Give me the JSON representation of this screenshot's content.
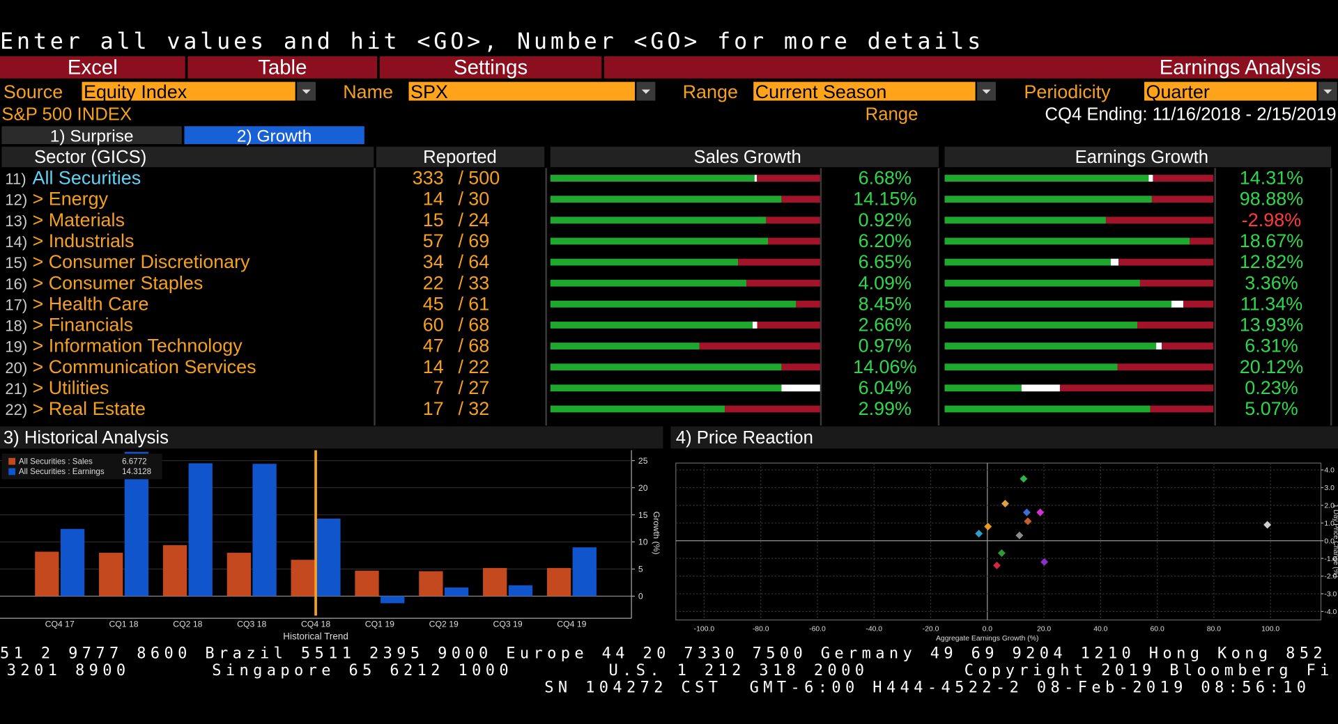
{
  "header": {
    "prompt": "Enter all values and hit <GO>, Number <GO> for more details",
    "menu": [
      "Excel",
      "Table",
      "Settings"
    ],
    "function_title": "Earnings Analysis"
  },
  "fields": [
    {
      "label": "Source",
      "value": "Equity Index"
    },
    {
      "label": "Name",
      "value": "SPX"
    },
    {
      "label": "Range",
      "value": "Current Season"
    },
    {
      "label": "Periodicity",
      "value": "Quarter"
    }
  ],
  "index_name": "S&P 500 INDEX",
  "range": {
    "label": "Range",
    "value": "CQ4 Ending: 11/16/2018 - 2/15/2019"
  },
  "tabs": [
    "1) Surprise",
    "2) Growth"
  ],
  "table": {
    "headers": [
      "Sector (GICS)",
      "Reported",
      "Sales Growth",
      "Earnings Growth"
    ],
    "separator": "/",
    "rows": [
      {
        "number": "11)",
        "name": "All Securities",
        "reported": 333,
        "total": 500,
        "sales": {
          "value": 6.68,
          "label": "6.68%",
          "beat": 75.7,
          "inline": 0.9,
          "miss": 23.4
        },
        "earnings": {
          "value": 14.31,
          "label": "14.31%",
          "beat": 75.9,
          "inline": 1.6,
          "miss": 22.5
        }
      },
      {
        "number": "12)",
        "name": "> Energy",
        "reported": 14,
        "total": 30,
        "sales": {
          "value": 14.15,
          "label": "14.15%",
          "beat": 85.7,
          "inline": 0,
          "miss": 14.3
        },
        "earnings": {
          "value": 98.88,
          "label": "98.88%",
          "beat": 77.1,
          "inline": 0,
          "miss": 22.9
        }
      },
      {
        "number": "13)",
        "name": "> Materials",
        "reported": 15,
        "total": 24,
        "sales": {
          "value": 0.92,
          "label": "0.92%",
          "beat": 80.0,
          "inline": 0,
          "miss": 20.0
        },
        "earnings": {
          "value": -2.98,
          "label": "-2.98%",
          "beat": 60.0,
          "inline": 0,
          "miss": 40.0
        }
      },
      {
        "number": "14)",
        "name": "> Industrials",
        "reported": 57,
        "total": 69,
        "sales": {
          "value": 6.2,
          "label": "6.20%",
          "beat": 80.7,
          "inline": 0,
          "miss": 19.3
        },
        "earnings": {
          "value": 18.67,
          "label": "18.67%",
          "beat": 91.2,
          "inline": 0,
          "miss": 8.8
        }
      },
      {
        "number": "15)",
        "name": "> Consumer Discretionary",
        "reported": 34,
        "total": 64,
        "sales": {
          "value": 6.65,
          "label": "6.65%",
          "beat": 69.6,
          "inline": 0,
          "miss": 30.4
        },
        "earnings": {
          "value": 12.82,
          "label": "12.82%",
          "beat": 61.8,
          "inline": 2.9,
          "miss": 35.3
        }
      },
      {
        "number": "16)",
        "name": "> Consumer Staples",
        "reported": 22,
        "total": 33,
        "sales": {
          "value": 4.09,
          "label": "4.09%",
          "beat": 72.7,
          "inline": 0,
          "miss": 27.3
        },
        "earnings": {
          "value": 3.36,
          "label": "3.36%",
          "beat": 72.7,
          "inline": 0,
          "miss": 27.3
        }
      },
      {
        "number": "17)",
        "name": "> Health Care",
        "reported": 45,
        "total": 61,
        "sales": {
          "value": 8.45,
          "label": "8.45%",
          "beat": 91.1,
          "inline": 0,
          "miss": 8.9
        },
        "earnings": {
          "value": 11.34,
          "label": "11.34%",
          "beat": 84.4,
          "inline": 4.4,
          "miss": 11.2
        }
      },
      {
        "number": "18)",
        "name": "> Financials",
        "reported": 60,
        "total": 68,
        "sales": {
          "value": 2.66,
          "label": "2.66%",
          "beat": 75.0,
          "inline": 1.7,
          "miss": 23.3
        },
        "earnings": {
          "value": 13.93,
          "label": "13.93%",
          "beat": 71.7,
          "inline": 0,
          "miss": 28.3
        }
      },
      {
        "number": "19)",
        "name": "> Information Technology",
        "reported": 47,
        "total": 68,
        "sales": {
          "value": 0.97,
          "label": "0.97%",
          "beat": 55.3,
          "inline": 0,
          "miss": 44.7
        },
        "earnings": {
          "value": 6.31,
          "label": "6.31%",
          "beat": 78.7,
          "inline": 2.1,
          "miss": 19.2
        }
      },
      {
        "number": "20)",
        "name": "> Communication Services",
        "reported": 14,
        "total": 22,
        "sales": {
          "value": 14.06,
          "label": "14.06%",
          "beat": 85.7,
          "inline": 0,
          "miss": 14.3
        },
        "earnings": {
          "value": 20.12,
          "label": "20.12%",
          "beat": 64.3,
          "inline": 0,
          "miss": 35.7
        }
      },
      {
        "number": "21)",
        "name": "> Utilities",
        "reported": 7,
        "total": 27,
        "sales": {
          "value": 6.04,
          "label": "6.04%",
          "beat": 85.7,
          "inline": 14.3,
          "miss": 0
        },
        "earnings": {
          "value": 0.23,
          "label": "0.23%",
          "beat": 28.6,
          "inline": 14.3,
          "miss": 57.1
        }
      },
      {
        "number": "22)",
        "name": "> Real Estate",
        "reported": 17,
        "total": 32,
        "sales": {
          "value": 2.99,
          "label": "2.99%",
          "beat": 64.7,
          "inline": 0,
          "miss": 35.3
        },
        "earnings": {
          "value": 5.07,
          "label": "5.07%",
          "beat": 76.5,
          "inline": 0,
          "miss": 23.5
        }
      }
    ]
  },
  "historical": {
    "title": "3) Historical Analysis",
    "type": "bar",
    "categories": [
      "CQ4 17",
      "CQ1 18",
      "CQ2 18",
      "CQ3 18",
      "CQ4 18",
      "CQ1 19",
      "CQ2 19",
      "CQ3 19",
      "CQ4 19"
    ],
    "series": [
      {
        "name": "All Securities : Sales",
        "latest": 6.6772,
        "color": "#c4491e",
        "values": [
          8.2,
          8.0,
          9.4,
          8.0,
          6.7,
          4.7,
          4.6,
          5.2,
          5.2
        ]
      },
      {
        "name": "All Securities : Earnings",
        "latest": 14.3128,
        "color": "#1155cc",
        "values": [
          12.4,
          26.6,
          24.5,
          24.4,
          14.3,
          -1.3,
          1.6,
          2.0,
          9.0
        ]
      }
    ],
    "ylim": [
      -3.6,
      26.9
    ],
    "yticks": [
      0,
      5,
      10,
      15,
      20,
      25
    ],
    "ylabel": "Growth (%)",
    "xlabel": "Historical Trend"
  },
  "price_reaction": {
    "title": "4) Price Reaction",
    "type": "scatter",
    "points": [
      {
        "x": 14.31,
        "y": 1.1,
        "color": "#c8602a"
      },
      {
        "x": 98.88,
        "y": 0.9,
        "color": "#cfcfcf"
      },
      {
        "x": -2.98,
        "y": 0.4,
        "color": "#2aa3c8"
      },
      {
        "x": 18.67,
        "y": 1.6,
        "color": "#d62fd0"
      },
      {
        "x": 12.82,
        "y": 3.5,
        "color": "#2fb34a"
      },
      {
        "x": 3.36,
        "y": -1.4,
        "color": "#d0283c"
      },
      {
        "x": 11.34,
        "y": 0.3,
        "color": "#8c8c8c"
      },
      {
        "x": 13.93,
        "y": 1.6,
        "color": "#3a6fd8"
      },
      {
        "x": 6.31,
        "y": 2.1,
        "color": "#e0a040"
      },
      {
        "x": 20.12,
        "y": -1.2,
        "color": "#8a2fc8"
      },
      {
        "x": 0.23,
        "y": 0.8,
        "color": "#e89a20"
      },
      {
        "x": 5.07,
        "y": -0.7,
        "color": "#2f9a3a"
      }
    ],
    "xlim": [
      -110,
      117.8
    ],
    "ylim": [
      -4.48,
      4.39
    ],
    "xticks": [
      {
        "value": -100,
        "label": "-100.0"
      },
      {
        "value": -80,
        "label": "-80.0"
      },
      {
        "value": -60,
        "label": "-60.0"
      },
      {
        "value": -40,
        "label": "-40.0"
      },
      {
        "value": -20,
        "label": "-20.0"
      },
      {
        "value": 0,
        "label": "0.0"
      },
      {
        "value": 20,
        "label": "20.0"
      },
      {
        "value": 40,
        "label": "40.0"
      },
      {
        "value": 60,
        "label": "60.0"
      },
      {
        "value": 80,
        "label": "80.0"
      },
      {
        "value": 100,
        "label": "100.0"
      }
    ],
    "yticks": [
      {
        "value": 4,
        "label": "4.0"
      },
      {
        "value": 3,
        "label": "3.0"
      },
      {
        "value": 2,
        "label": "2.0"
      },
      {
        "value": 1,
        "label": "1.0"
      },
      {
        "value": 0,
        "label": "0.0"
      },
      {
        "value": -1,
        "label": "-1.0"
      },
      {
        "value": -2,
        "label": "-2.0"
      },
      {
        "value": -3,
        "label": "-3.0"
      },
      {
        "value": -4,
        "label": "-4.0"
      }
    ],
    "xlabel": "Aggregate Earnings Growth (%)",
    "ylabel": "1 Day Price Change (%)"
  },
  "footer": {
    "lines": [
      "51 2 9777 8600 Brazil 5511 2395 9000 Europe 44 20 7330 7500 Germany 49 69 9204 1210 Hong Kong 852",
      "3201 8900      Singapore 65 6212 1000       U.S. 1 212 318 2000       Copyright 2019 Bloomberg Fi",
      "SN 104272 CST  GMT-6:00 H444-4522-2 08-Feb-2019 08:56:10"
    ]
  }
}
